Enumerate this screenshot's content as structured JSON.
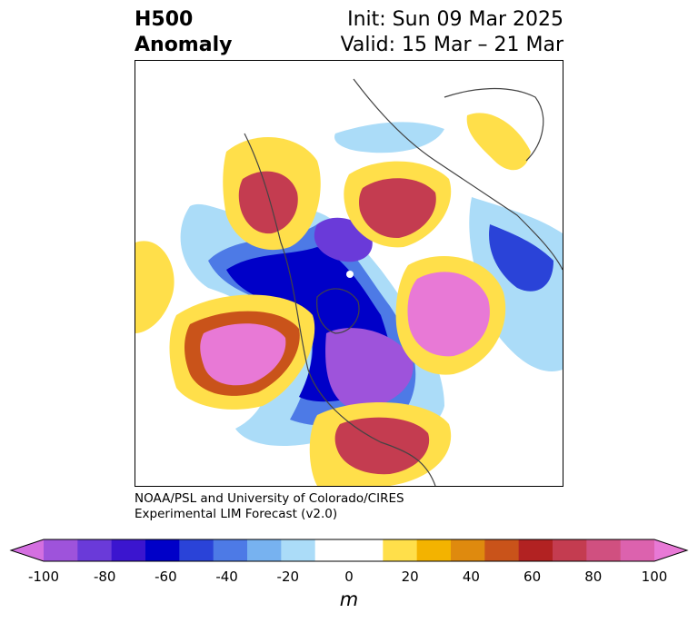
{
  "title": {
    "line1": "H500",
    "line2": "Anomaly"
  },
  "init": {
    "line1": "Init: Sun 09 Mar 2025",
    "line2": "Valid: 15 Mar – 21 Mar"
  },
  "credit": {
    "line1": "NOAA/PSL and University of Colorado/CIRES",
    "line2": "Experimental LIM Forecast (v2.0)"
  },
  "colorbar": {
    "unit": "m",
    "ticks": [
      "-100",
      "-80",
      "-60",
      "-40",
      "-20",
      "0",
      "20",
      "40",
      "60",
      "80",
      "100"
    ],
    "colors": [
      "#d46fe0",
      "#9e53db",
      "#6a3ad9",
      "#3b15cf",
      "#0000c8",
      "#2a43d8",
      "#4d7ae6",
      "#77b2f0",
      "#abdcf8",
      "#ffffff",
      "#ffffff",
      "#ffdf4a",
      "#f3b300",
      "#df8a0e",
      "#c9531a",
      "#b22222",
      "#c43c50",
      "#d05080",
      "#dc62ae",
      "#e879d6"
    ]
  }
}
